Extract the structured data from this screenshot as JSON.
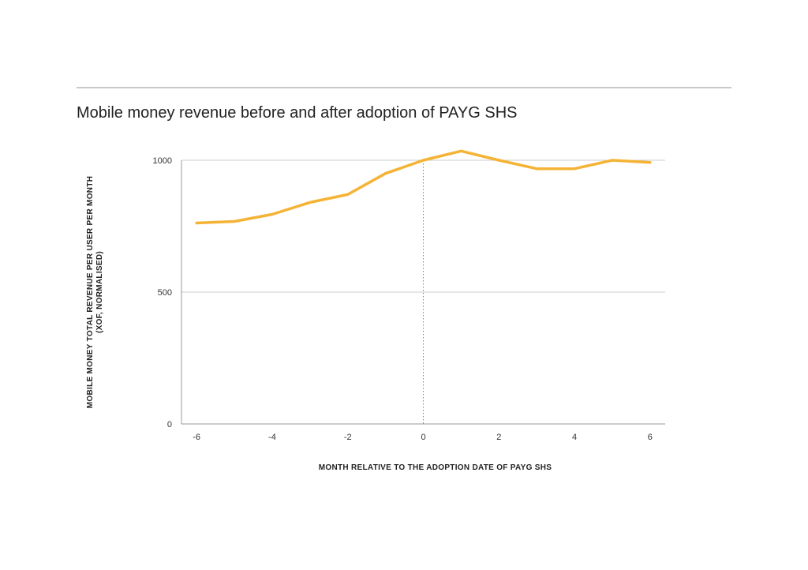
{
  "page": {
    "title": "Mobile money revenue before and after adoption of PAYG SHS"
  },
  "chart_data": {
    "type": "line",
    "title": "Mobile money revenue before and after adoption of PAYG SHS",
    "xlabel": "MONTH RELATIVE TO THE ADOPTION DATE OF PAYG SHS",
    "ylabel_lines": [
      "MOBILE MONEY TOTAL REVENUE PER USER PER MONTH",
      "(XOF, NORMALISED)"
    ],
    "x": [
      -6,
      -5,
      -4,
      -3,
      -2,
      -1,
      0,
      1,
      2,
      3,
      4,
      5,
      6
    ],
    "series": [
      {
        "values": [
          762,
          768,
          795,
          840,
          870,
          950,
          1000,
          1035,
          1000,
          968,
          968,
          1000,
          992
        ]
      }
    ],
    "xlim": [
      -6.4,
      6.4
    ],
    "ylim": [
      0,
      1000
    ],
    "xticks": [
      -6,
      -4,
      -2,
      0,
      2,
      4,
      6
    ],
    "yticks": [
      0,
      500,
      1000
    ],
    "reference_line_x": 0,
    "grid": true,
    "colors": {
      "line": "#F5B335",
      "grid": "#cccccc",
      "axis": "#999999",
      "reference": "#888888"
    }
  }
}
